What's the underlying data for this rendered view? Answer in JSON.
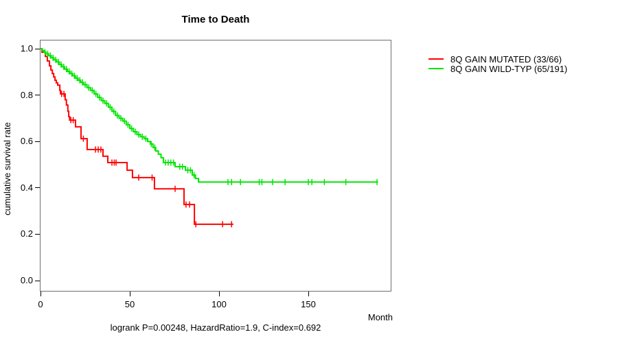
{
  "chart_data": {
    "type": "line",
    "variant": "kaplan-meier-step",
    "title": "Time to Death",
    "ylabel": "cumulative survival rate",
    "xlabel": "Month",
    "footnote": "logrank P=0.00248, HazardRatio=1.9, C-index=0.692",
    "xlim": [
      0,
      196
    ],
    "ylim": [
      0.0,
      1.0
    ],
    "grid": false,
    "legend_position": "right-outside",
    "x_ticks": [
      {
        "value": 0,
        "label": "0"
      },
      {
        "value": 50,
        "label": "50"
      },
      {
        "value": 100,
        "label": "100"
      },
      {
        "value": 150,
        "label": "150"
      }
    ],
    "y_ticks": [
      {
        "value": 1.0,
        "label": "1.0"
      },
      {
        "value": 0.8,
        "label": "0.8"
      },
      {
        "value": 0.6,
        "label": "0.6"
      },
      {
        "value": 0.4,
        "label": "0.4"
      },
      {
        "value": 0.2,
        "label": "0.2"
      },
      {
        "value": 0.0,
        "label": "0.0"
      }
    ],
    "series": [
      {
        "name": "8Q GAIN MUTATED (33/66)",
        "color": "#FF0000",
        "end_month": 108,
        "steps": [
          [
            0,
            1.0
          ],
          [
            0.8,
            0.985
          ],
          [
            2.7,
            0.967
          ],
          [
            3.8,
            0.947
          ],
          [
            5,
            0.926
          ],
          [
            5.8,
            0.908
          ],
          [
            6.6,
            0.893
          ],
          [
            7.4,
            0.878
          ],
          [
            8.1,
            0.864
          ],
          [
            8.8,
            0.853
          ],
          [
            9.6,
            0.843
          ],
          [
            10.8,
            0.82
          ],
          [
            11.2,
            0.805
          ],
          [
            13.8,
            0.78
          ],
          [
            14.5,
            0.757
          ],
          [
            15.3,
            0.73
          ],
          [
            15.8,
            0.707
          ],
          [
            16.3,
            0.692
          ],
          [
            19.6,
            0.663
          ],
          [
            22.7,
            0.612
          ],
          [
            26.1,
            0.565
          ],
          [
            35,
            0.536
          ],
          [
            37.7,
            0.509
          ],
          [
            48.5,
            0.476
          ],
          [
            51.5,
            0.444
          ],
          [
            63.8,
            0.396
          ],
          [
            80.4,
            0.328
          ],
          [
            86.2,
            0.243
          ]
        ],
        "censors": [
          [
            11.8,
            0.805
          ],
          [
            13.1,
            0.805
          ],
          [
            17,
            0.692
          ],
          [
            18.3,
            0.692
          ],
          [
            24,
            0.612
          ],
          [
            30.8,
            0.565
          ],
          [
            32.3,
            0.565
          ],
          [
            33.8,
            0.565
          ],
          [
            40,
            0.509
          ],
          [
            41.3,
            0.509
          ],
          [
            42.3,
            0.509
          ],
          [
            55,
            0.444
          ],
          [
            62.5,
            0.444
          ],
          [
            75.4,
            0.396
          ],
          [
            81.5,
            0.328
          ],
          [
            83.5,
            0.328
          ],
          [
            87,
            0.243
          ],
          [
            102,
            0.243
          ],
          [
            107,
            0.243
          ]
        ]
      },
      {
        "name": "8Q GAIN WILD-TYP (65/191)",
        "color": "#00E500",
        "end_month": 189,
        "steps": [
          [
            0,
            1.0
          ],
          [
            1,
            0.992
          ],
          [
            2,
            0.985
          ],
          [
            3,
            0.978
          ],
          [
            4.5,
            0.97
          ],
          [
            6,
            0.961
          ],
          [
            7.5,
            0.952
          ],
          [
            9,
            0.943
          ],
          [
            10.5,
            0.932
          ],
          [
            12,
            0.922
          ],
          [
            13.5,
            0.912
          ],
          [
            15,
            0.902
          ],
          [
            16.5,
            0.893
          ],
          [
            18,
            0.883
          ],
          [
            19.5,
            0.873
          ],
          [
            21,
            0.864
          ],
          [
            22.5,
            0.855
          ],
          [
            24,
            0.845
          ],
          [
            26,
            0.832
          ],
          [
            28,
            0.82
          ],
          [
            30,
            0.805
          ],
          [
            32,
            0.79
          ],
          [
            34,
            0.776
          ],
          [
            36,
            0.764
          ],
          [
            38,
            0.748
          ],
          [
            40,
            0.73
          ],
          [
            42,
            0.712
          ],
          [
            44,
            0.7
          ],
          [
            46,
            0.688
          ],
          [
            48,
            0.672
          ],
          [
            50,
            0.656
          ],
          [
            52,
            0.642
          ],
          [
            54,
            0.63
          ],
          [
            56,
            0.62
          ],
          [
            58,
            0.612
          ],
          [
            60,
            0.6
          ],
          [
            61.5,
            0.589
          ],
          [
            63,
            0.574
          ],
          [
            64.5,
            0.559
          ],
          [
            66,
            0.545
          ],
          [
            67.5,
            0.53
          ],
          [
            68.8,
            0.509
          ],
          [
            75.4,
            0.491
          ],
          [
            81.2,
            0.476
          ],
          [
            85,
            0.455
          ],
          [
            86.8,
            0.44
          ],
          [
            88.5,
            0.425
          ]
        ],
        "censors": [
          [
            2.5,
            0.985
          ],
          [
            4,
            0.978
          ],
          [
            5.5,
            0.97
          ],
          [
            7,
            0.961
          ],
          [
            8.5,
            0.952
          ],
          [
            10,
            0.943
          ],
          [
            11.5,
            0.932
          ],
          [
            13,
            0.922
          ],
          [
            14.5,
            0.912
          ],
          [
            16,
            0.902
          ],
          [
            17.5,
            0.893
          ],
          [
            19,
            0.883
          ],
          [
            20.5,
            0.873
          ],
          [
            22,
            0.864
          ],
          [
            23.5,
            0.855
          ],
          [
            25,
            0.845
          ],
          [
            27,
            0.832
          ],
          [
            29,
            0.82
          ],
          [
            31,
            0.805
          ],
          [
            33,
            0.79
          ],
          [
            35,
            0.776
          ],
          [
            37,
            0.764
          ],
          [
            39,
            0.748
          ],
          [
            41,
            0.73
          ],
          [
            43,
            0.712
          ],
          [
            45,
            0.7
          ],
          [
            47,
            0.688
          ],
          [
            49,
            0.672
          ],
          [
            51,
            0.656
          ],
          [
            53,
            0.642
          ],
          [
            55,
            0.63
          ],
          [
            57,
            0.62
          ],
          [
            59,
            0.612
          ],
          [
            62,
            0.589
          ],
          [
            64,
            0.574
          ],
          [
            70,
            0.509
          ],
          [
            71.5,
            0.509
          ],
          [
            73,
            0.509
          ],
          [
            74.5,
            0.509
          ],
          [
            78,
            0.491
          ],
          [
            79.5,
            0.491
          ],
          [
            82.5,
            0.476
          ],
          [
            84,
            0.476
          ],
          [
            86,
            0.455
          ],
          [
            105,
            0.425
          ],
          [
            107,
            0.425
          ],
          [
            112,
            0.425
          ],
          [
            122.5,
            0.425
          ],
          [
            124,
            0.425
          ],
          [
            130,
            0.425
          ],
          [
            137,
            0.425
          ],
          [
            150,
            0.425
          ],
          [
            152,
            0.425
          ],
          [
            159,
            0.425
          ],
          [
            171,
            0.425
          ],
          [
            188.5,
            0.425
          ]
        ]
      }
    ]
  }
}
